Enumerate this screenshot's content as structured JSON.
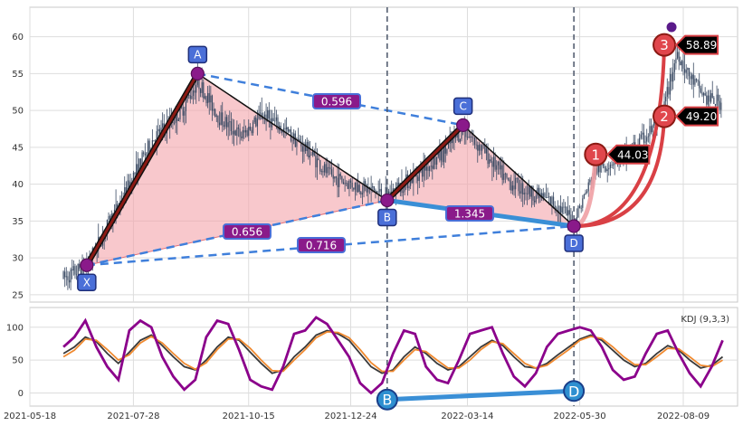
{
  "chart_data": [
    {
      "type": "candlestick",
      "pattern": "harmonic-xabcd",
      "xaxis_ticks": [
        "2021-05-18",
        "2021-07-28",
        "2021-10-15",
        "2021-12-24",
        "2022-03-14",
        "2022-05-30",
        "2022-08-09"
      ],
      "ylim": [
        24,
        64
      ],
      "yticks": [
        25,
        30,
        35,
        40,
        45,
        50,
        55,
        60
      ],
      "grid": true,
      "points": [
        {
          "label": "X",
          "date": "2021-06-26",
          "value": 29.0
        },
        {
          "label": "A",
          "date": "2021-09-10",
          "value": 55.0
        },
        {
          "label": "B",
          "date": "2022-01-18",
          "value": 37.8
        },
        {
          "label": "C",
          "date": "2022-03-11",
          "value": 48.0
        },
        {
          "label": "D",
          "date": "2022-05-26",
          "value": 34.3
        }
      ],
      "ratios": [
        {
          "text": "0.596",
          "between": [
            "A",
            "C"
          ]
        },
        {
          "text": "0.656",
          "between": [
            "X",
            "B"
          ]
        },
        {
          "text": "0.716",
          "between": [
            "X",
            "D"
          ]
        },
        {
          "text": "1.345",
          "between": [
            "B",
            "D"
          ]
        }
      ],
      "targets": [
        {
          "label": "1",
          "value_text": "44.03",
          "value": 44.03,
          "date": "2022-06-10"
        },
        {
          "label": "2",
          "value_text": "49.20",
          "value": 49.2,
          "date": "2022-07-27"
        },
        {
          "label": "3",
          "value_text": "58.89",
          "value": 58.89,
          "date": "2022-07-27"
        }
      ],
      "series": [
        {
          "date": "2021-06-10",
          "value": 27.2
        },
        {
          "date": "2021-06-26",
          "value": 29.0
        },
        {
          "date": "2021-07-20",
          "value": 38.0
        },
        {
          "date": "2021-08-10",
          "value": 46.0
        },
        {
          "date": "2021-08-30",
          "value": 50.0
        },
        {
          "date": "2021-09-10",
          "value": 54.0
        },
        {
          "date": "2021-09-25",
          "value": 49.0
        },
        {
          "date": "2021-10-10",
          "value": 46.5
        },
        {
          "date": "2021-10-25",
          "value": 49.5
        },
        {
          "date": "2021-11-10",
          "value": 47.0
        },
        {
          "date": "2021-11-25",
          "value": 44.5
        },
        {
          "date": "2021-12-10",
          "value": 41.0
        },
        {
          "date": "2021-12-25",
          "value": 40.0
        },
        {
          "date": "2022-01-10",
          "value": 39.0
        },
        {
          "date": "2022-01-18",
          "value": 38.5
        },
        {
          "date": "2022-02-05",
          "value": 41.0
        },
        {
          "date": "2022-02-25",
          "value": 44.0
        },
        {
          "date": "2022-03-11",
          "value": 47.5
        },
        {
          "date": "2022-03-25",
          "value": 44.5
        },
        {
          "date": "2022-04-10",
          "value": 40.5
        },
        {
          "date": "2022-04-25",
          "value": 39.0
        },
        {
          "date": "2022-05-12",
          "value": 37.5
        },
        {
          "date": "2022-05-26",
          "value": 35.0
        },
        {
          "date": "2022-06-10",
          "value": 42.0
        },
        {
          "date": "2022-06-25",
          "value": 43.5
        },
        {
          "date": "2022-07-10",
          "value": 45.5
        },
        {
          "date": "2022-07-25",
          "value": 49.0
        },
        {
          "date": "2022-08-05",
          "value": 58.0
        },
        {
          "date": "2022-08-12",
          "value": 55.0
        },
        {
          "date": "2022-08-25",
          "value": 51.5
        },
        {
          "date": "2022-09-05",
          "value": 51.0
        }
      ],
      "colors": {
        "candles": "#3a4a63",
        "triangle_fill": "#f4a4aa",
        "xa_line": "#8b1a14",
        "dashed": "#3f7fdb",
        "bd_line": "#3a8fd6",
        "badge_fill": "#8a1a8a",
        "point_marker": "#8a1a8a",
        "label_box": "#4a6fd8",
        "target_circle": "#e0464c"
      }
    },
    {
      "type": "line",
      "indicator": "KDJ (9,3,3)",
      "ylim": [
        -20,
        130
      ],
      "yticks": [
        0,
        50,
        100
      ],
      "grid": true,
      "divergence_labels": [
        "B",
        "D"
      ],
      "series": [
        {
          "color": "#3a3a3a",
          "values": [
            60,
            70,
            85,
            78,
            60,
            45,
            62,
            80,
            88,
            72,
            55,
            40,
            35,
            50,
            70,
            85,
            80,
            62,
            45,
            30,
            35,
            55,
            70,
            88,
            95,
            90,
            80,
            60,
            40,
            30,
            35,
            55,
            70,
            60,
            45,
            35,
            40,
            55,
            70,
            80,
            72,
            55,
            40,
            38,
            45,
            58,
            70,
            82,
            88,
            80,
            65,
            50,
            40,
            45,
            60,
            72,
            65,
            50,
            38,
            42,
            55
          ]
        },
        {
          "color": "#f08a30",
          "values": [
            55,
            65,
            82,
            80,
            66,
            50,
            58,
            76,
            86,
            76,
            60,
            45,
            36,
            46,
            66,
            82,
            82,
            68,
            50,
            34,
            33,
            50,
            66,
            84,
            93,
            92,
            84,
            66,
            46,
            33,
            33,
            50,
            66,
            63,
            50,
            38,
            38,
            50,
            66,
            78,
            75,
            60,
            45,
            38,
            42,
            54,
            66,
            80,
            86,
            83,
            70,
            55,
            43,
            43,
            55,
            68,
            67,
            55,
            42,
            40,
            50
          ]
        },
        {
          "color": "#8b008b",
          "values": [
            70,
            85,
            110,
            70,
            40,
            20,
            95,
            110,
            100,
            55,
            25,
            5,
            20,
            85,
            110,
            105,
            65,
            20,
            10,
            5,
            40,
            90,
            95,
            115,
            105,
            80,
            55,
            15,
            0,
            15,
            60,
            95,
            90,
            40,
            20,
            15,
            50,
            90,
            95,
            100,
            60,
            25,
            10,
            30,
            70,
            90,
            95,
            100,
            95,
            70,
            35,
            20,
            25,
            60,
            90,
            95,
            60,
            30,
            10,
            40,
            80
          ]
        }
      ]
    }
  ]
}
